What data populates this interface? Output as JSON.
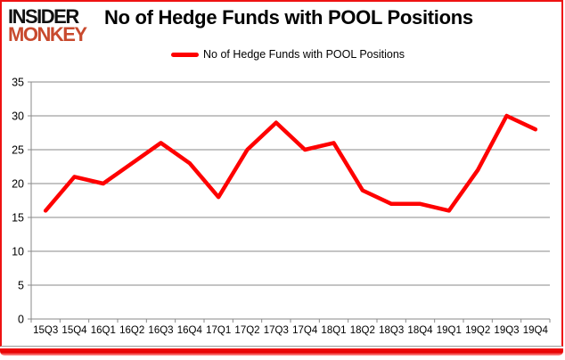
{
  "logo": {
    "line1": "INSIDER",
    "line2": "MONKEY"
  },
  "header": {
    "title": "No of Hedge Funds with POOL Positions"
  },
  "legend": {
    "label": "No of Hedge Funds with POOL Positions"
  },
  "chart_data": {
    "type": "line",
    "title": "No of Hedge Funds with POOL Positions",
    "categories": [
      "15Q3",
      "15Q4",
      "16Q1",
      "16Q2",
      "16Q3",
      "16Q4",
      "17Q1",
      "17Q2",
      "17Q3",
      "17Q4",
      "18Q1",
      "18Q2",
      "18Q3",
      "18Q4",
      "19Q1",
      "19Q2",
      "19Q3",
      "19Q4"
    ],
    "series": [
      {
        "name": "No of Hedge Funds with POOL Positions",
        "values": [
          16,
          21,
          20,
          23,
          26,
          23,
          18,
          25,
          29,
          25,
          26,
          19,
          17,
          17,
          16,
          22,
          30,
          28
        ]
      }
    ],
    "xlabel": "",
    "ylabel": "",
    "ylim": [
      0,
      35
    ],
    "yticks": [
      0,
      5,
      10,
      15,
      20,
      25,
      30,
      35
    ],
    "grid": true,
    "legend_position": "top"
  },
  "colors": {
    "line": "#fe0000",
    "frame": "#ee1212",
    "logo-red": "#c84a2e",
    "grid": "#8a8a8a",
    "text": "#000000"
  }
}
